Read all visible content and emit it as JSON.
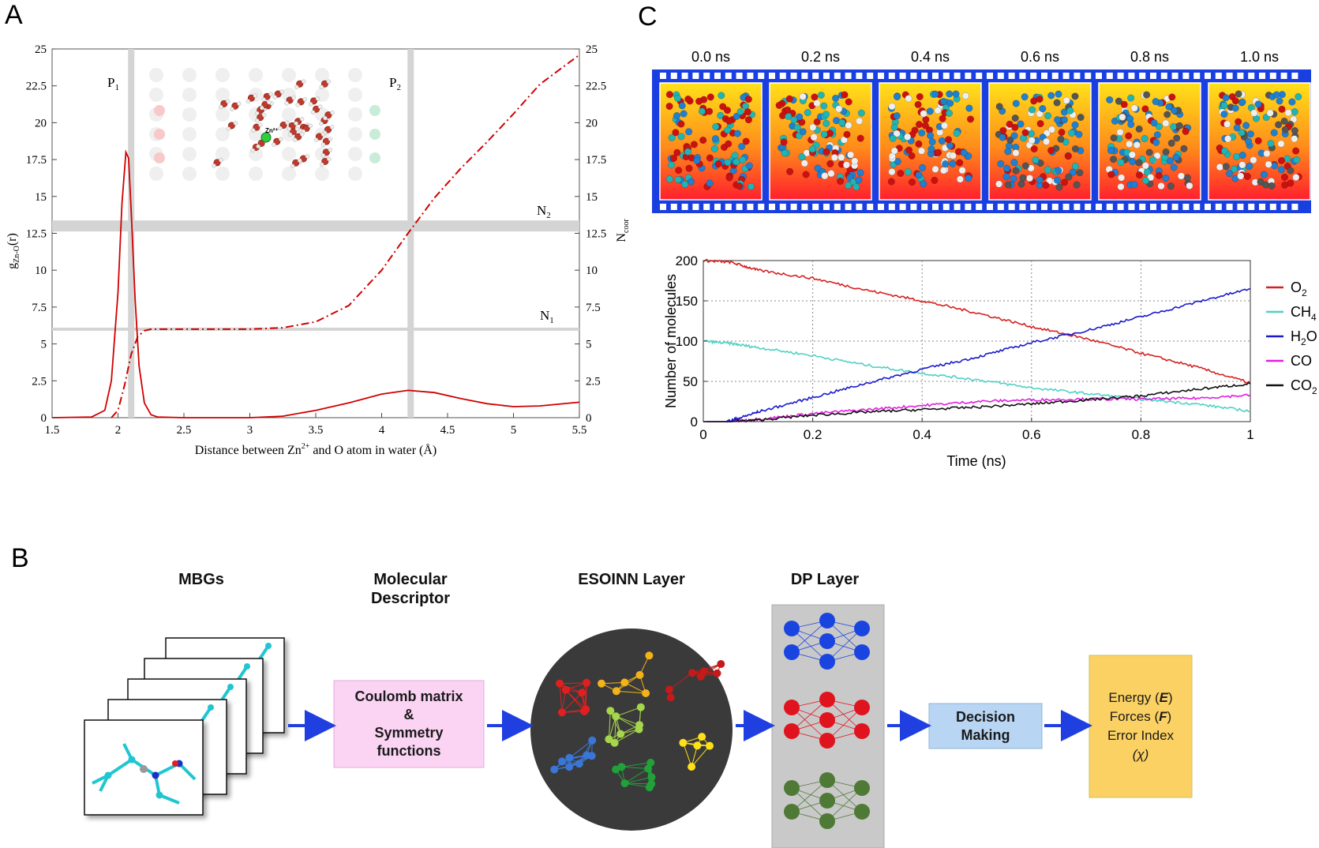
{
  "panels": {
    "a": "A",
    "b": "B",
    "c": "C"
  },
  "panel_a": {
    "peak_labels": {
      "p1": "P",
      "p1_sub": "1",
      "p2": "P",
      "p2_sub": "2"
    },
    "n_labels": {
      "n2": "N",
      "n2_sub": "2",
      "n1": "N",
      "n1_sub": "1"
    },
    "zn_label": "Zn²⁺",
    "ylabel_left": {
      "base": "g",
      "sub": "Zn-O",
      "suffix": "(r)"
    },
    "ylabel_right": {
      "base": "N",
      "sub": "coor"
    },
    "xlabel": {
      "pre": "Distance between Zn",
      "sup": "2+",
      "post": " and O atom in water (Å)"
    }
  },
  "panel_c": {
    "frames": [
      "0.0 ns",
      "0.2 ns",
      "0.4 ns",
      "0.6 ns",
      "0.8 ns",
      "1.0 ns"
    ],
    "ylabel": "Number of molecules",
    "xlabel": "Time (ns)",
    "legend": [
      {
        "label": "O",
        "sub": "2",
        "color": "#d62020"
      },
      {
        "label": "CH",
        "sub": "4",
        "color": "#4fd1c5"
      },
      {
        "label": "H",
        "sub": "2",
        "post": "O",
        "color": "#1a1acc"
      },
      {
        "label": "CO",
        "sub": "",
        "color": "#e020e0"
      },
      {
        "label": "CO",
        "sub": "2",
        "color": "#111111"
      }
    ]
  },
  "panel_b": {
    "stages": [
      "MBGs",
      "Molecular\nDescriptor",
      "ESOINN Layer",
      "DP Layer"
    ],
    "descriptor_box": [
      "Coulomb matrix",
      "&",
      "Symmetry",
      "functions"
    ],
    "decision_box": [
      "Decision",
      "Making"
    ],
    "output_box": {
      "energy": "Energy (",
      "e": "E",
      "close": ")",
      "forces": "Forces (",
      "f": "F",
      "error": "Error Index",
      "chi": "(χ)"
    }
  },
  "chart_data": [
    {
      "type": "line",
      "id": "A",
      "xlabel": "Distance between Zn2+ and O atom in water (Å)",
      "ylabel": "gZn-O(r)",
      "y2label": "Ncoor",
      "xlim": [
        1.5,
        5.5
      ],
      "ylim": [
        0,
        25
      ],
      "y2lim": [
        0,
        25
      ],
      "xticks": [
        "1.5",
        "2",
        "2.5",
        "3",
        "3.5",
        "4",
        "4.5",
        "5",
        "5.5"
      ],
      "yticks": [
        "0",
        "2.5",
        "5",
        "7.5",
        "10",
        "12.5",
        "15",
        "17.5",
        "20",
        "22.5",
        "25"
      ],
      "reference_lines": {
        "vertical": [
          2.1,
          4.22
        ],
        "horizontal": [
          6,
          13
        ]
      },
      "series": [
        {
          "name": "g(r)",
          "style": "solid",
          "color": "#d00000",
          "x": [
            1.5,
            1.8,
            1.9,
            1.95,
            2.0,
            2.03,
            2.06,
            2.08,
            2.1,
            2.13,
            2.16,
            2.2,
            2.25,
            2.3,
            2.5,
            3.0,
            3.25,
            3.5,
            3.75,
            4.0,
            4.2,
            4.4,
            4.6,
            4.8,
            5.0,
            5.2,
            5.5
          ],
          "y": [
            0,
            0.05,
            0.5,
            2.5,
            8.5,
            14.5,
            18.0,
            17.6,
            14.0,
            8.0,
            3.5,
            1.0,
            0.2,
            0.05,
            0,
            0,
            0.1,
            0.5,
            1.0,
            1.6,
            1.85,
            1.7,
            1.3,
            0.95,
            0.75,
            0.8,
            1.05
          ]
        },
        {
          "name": "N(r)",
          "style": "dash-dot",
          "color": "#d00000",
          "x": [
            1.95,
            2.0,
            2.05,
            2.1,
            2.15,
            2.2,
            2.25,
            2.3,
            2.5,
            3.0,
            3.25,
            3.5,
            3.75,
            4.0,
            4.2,
            4.4,
            4.6,
            4.8,
            5.0,
            5.2,
            5.5
          ],
          "y": [
            0,
            0.5,
            2.2,
            4.3,
            5.5,
            5.9,
            6.0,
            6.0,
            6.0,
            6.0,
            6.1,
            6.5,
            7.6,
            10.0,
            12.5,
            14.9,
            16.9,
            18.7,
            20.6,
            22.6,
            24.6
          ]
        }
      ]
    },
    {
      "type": "line",
      "id": "C",
      "xlabel": "Time (ns)",
      "ylabel": "Number of molecules",
      "xlim": [
        0,
        1
      ],
      "ylim": [
        0,
        200
      ],
      "xticks": [
        "0",
        "0.2",
        "0.4",
        "0.6",
        "0.8",
        "1"
      ],
      "yticks": [
        "0",
        "50",
        "100",
        "150",
        "200"
      ],
      "grid": true,
      "legend_position": "right",
      "series": [
        {
          "name": "O2",
          "color": "#d62020",
          "x": [
            0,
            0.05,
            0.1,
            0.2,
            0.3,
            0.4,
            0.5,
            0.6,
            0.7,
            0.8,
            0.9,
            1.0
          ],
          "y": [
            200,
            198,
            188,
            178,
            163,
            150,
            135,
            118,
            103,
            85,
            68,
            48
          ]
        },
        {
          "name": "CH4",
          "color": "#4fd1c5",
          "x": [
            0,
            0.05,
            0.1,
            0.2,
            0.3,
            0.4,
            0.5,
            0.6,
            0.7,
            0.8,
            0.9,
            1.0
          ],
          "y": [
            100,
            97,
            92,
            82,
            70,
            60,
            52,
            42,
            35,
            28,
            22,
            13
          ]
        },
        {
          "name": "H2O",
          "color": "#1a1acc",
          "x": [
            0,
            0.04,
            0.06,
            0.1,
            0.2,
            0.3,
            0.4,
            0.5,
            0.6,
            0.7,
            0.8,
            0.9,
            1.0
          ],
          "y": [
            0,
            0,
            3,
            12,
            30,
            48,
            65,
            80,
            98,
            113,
            130,
            148,
            165
          ]
        },
        {
          "name": "CO",
          "color": "#e020e0",
          "x": [
            0,
            0.05,
            0.1,
            0.2,
            0.3,
            0.4,
            0.5,
            0.6,
            0.7,
            0.8,
            0.9,
            1.0
          ],
          "y": [
            0,
            0,
            3,
            10,
            15,
            20,
            25,
            27,
            28,
            28,
            29,
            33
          ]
        },
        {
          "name": "CO2",
          "color": "#111111",
          "x": [
            0,
            0.05,
            0.1,
            0.2,
            0.3,
            0.4,
            0.5,
            0.6,
            0.7,
            0.8,
            0.9,
            1.0
          ],
          "y": [
            0,
            0,
            2,
            8,
            12,
            15,
            18,
            22,
            27,
            32,
            40,
            47
          ]
        }
      ]
    }
  ]
}
